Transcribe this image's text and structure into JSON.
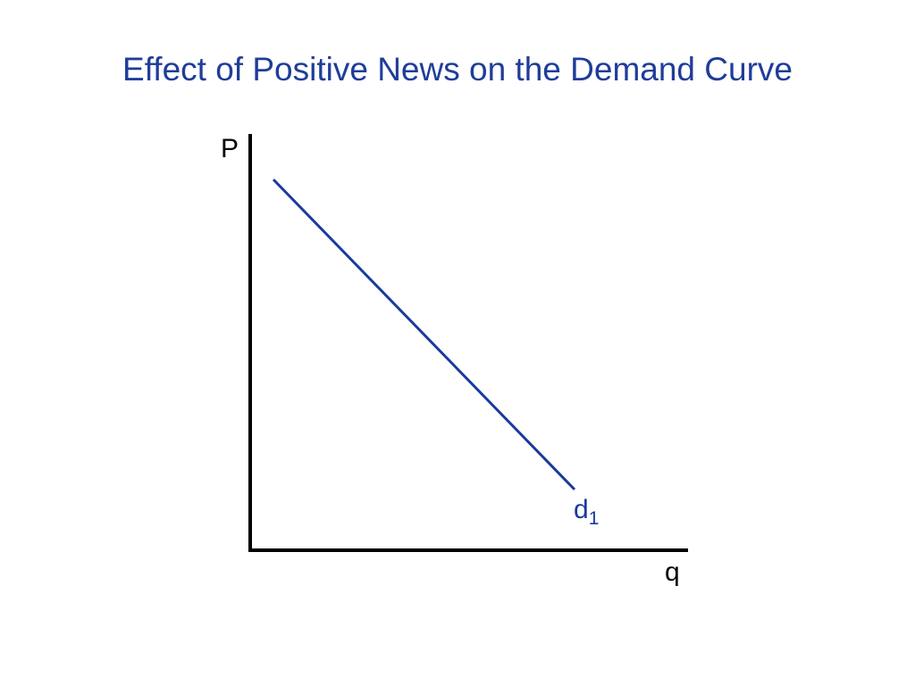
{
  "slide": {
    "title": "Effect of Positive News on the Demand Curve"
  },
  "diagram": {
    "y_axis_label": "P",
    "x_axis_label": "q",
    "curve_label": "d",
    "curve_label_subscript": "1",
    "colors": {
      "title": "#1f3d99",
      "curve": "#1a3a9c",
      "axes": "#000000"
    }
  }
}
